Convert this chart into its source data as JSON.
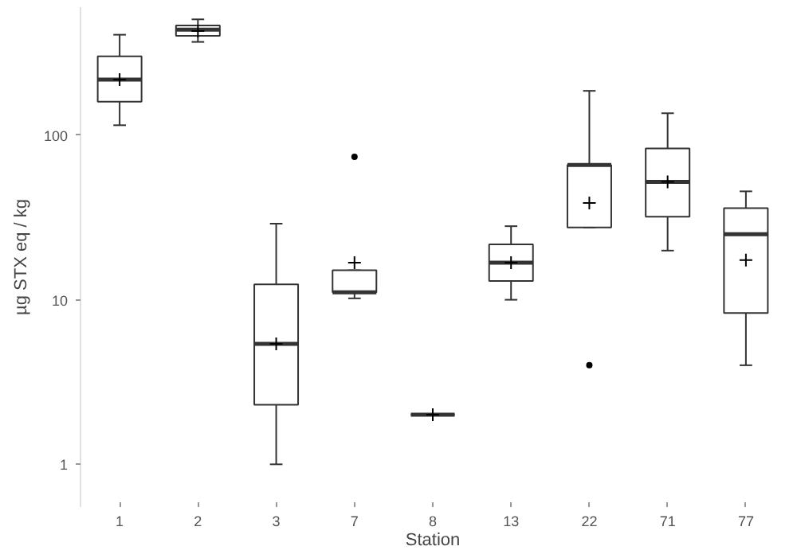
{
  "chart_data": {
    "type": "box",
    "xlabel": "Station",
    "ylabel": "µg STX eq / kg",
    "categories": [
      "1",
      "2",
      "3",
      "7",
      "8",
      "13",
      "22",
      "71",
      "77"
    ],
    "log": true,
    "ylim": [
      0.55,
      600
    ],
    "yticks": [
      1,
      10,
      100
    ],
    "grid": false,
    "marker": "cross",
    "series": [
      {
        "color": "#333333",
        "boxes": [
          {
            "low": 115,
            "q1": 160,
            "median": 218,
            "q3": 302,
            "high": 408,
            "mean": 218
          },
          {
            "low": 369,
            "q1": 402,
            "median": 438,
            "q3": 464,
            "high": 506,
            "mean": 430
          },
          {
            "low": 1,
            "q1": 2.3,
            "median": 5.4,
            "q3": 12.4,
            "high": 29,
            "mean": 5.4
          },
          {
            "low": 10.2,
            "q1": 11.1,
            "median": 11.1,
            "q3": 15.1,
            "high": 15.1,
            "mean": 16.8,
            "outliers": [
              74
            ]
          },
          {
            "low": 2,
            "q1": 2,
            "median": 2,
            "q3": 2,
            "high": 2,
            "mean": 2
          },
          {
            "low": 10,
            "q1": 13,
            "median": 16.8,
            "q3": 21.7,
            "high": 28,
            "mean": 16.8
          },
          {
            "low": 27.5,
            "q1": 27.5,
            "median": 66,
            "q3": 66,
            "high": 186,
            "mean": 38.7,
            "outliers": [
              4
            ]
          },
          {
            "low": 19.9,
            "q1": 32,
            "median": 52,
            "q3": 83,
            "high": 136,
            "mean": 52
          },
          {
            "low": 4,
            "q1": 8.3,
            "median": 25,
            "q3": 36,
            "high": 45.6,
            "mean": 17.4
          }
        ]
      }
    ]
  }
}
